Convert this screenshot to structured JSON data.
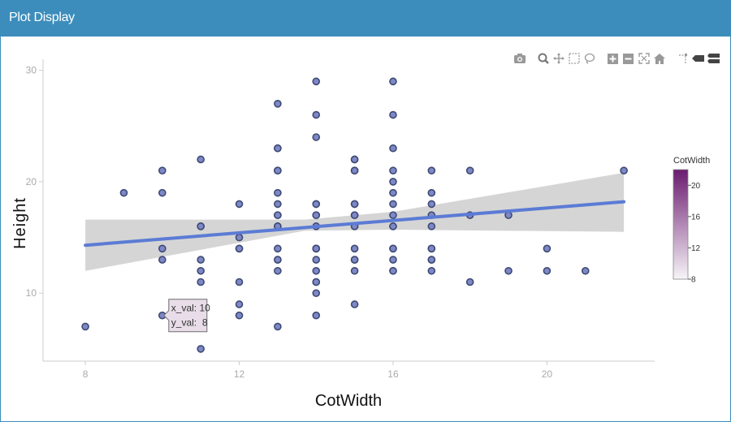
{
  "panel": {
    "title": "Plot Display"
  },
  "modebar": {
    "icons": [
      "camera-icon",
      "zoom-icon",
      "pan-icon",
      "box-select-icon",
      "lasso-select-icon",
      "zoom-in-icon",
      "zoom-out-icon",
      "autoscale-icon",
      "reset-axes-icon",
      "spike-lines-icon",
      "hover-closest-icon",
      "hover-compare-icon"
    ],
    "icon_color": "#999999"
  },
  "chart_data": {
    "type": "scatter",
    "title": "",
    "xlabel": "CotWidth",
    "ylabel": "Height",
    "xlim": [
      6.9,
      22.8
    ],
    "ylim": [
      3.9,
      30.7
    ],
    "xticks": [
      8,
      12,
      16,
      20
    ],
    "yticks": [
      10,
      20,
      30
    ],
    "grid": false,
    "points": [
      [
        8,
        7
      ],
      [
        9,
        19
      ],
      [
        10,
        21
      ],
      [
        10,
        19
      ],
      [
        10,
        14
      ],
      [
        10,
        13
      ],
      [
        10,
        8
      ],
      [
        11,
        22
      ],
      [
        11,
        16
      ],
      [
        11,
        16
      ],
      [
        11,
        13
      ],
      [
        11,
        12
      ],
      [
        11,
        11
      ],
      [
        11,
        5
      ],
      [
        12,
        18
      ],
      [
        12,
        15
      ],
      [
        12,
        14
      ],
      [
        12,
        14
      ],
      [
        12,
        11
      ],
      [
        12,
        9
      ],
      [
        12,
        8
      ],
      [
        13,
        27
      ],
      [
        13,
        23
      ],
      [
        13,
        23
      ],
      [
        13,
        21
      ],
      [
        13,
        21
      ],
      [
        13,
        19
      ],
      [
        13,
        18
      ],
      [
        13,
        17
      ],
      [
        13,
        17
      ],
      [
        13,
        16
      ],
      [
        13,
        16
      ],
      [
        13,
        14
      ],
      [
        13,
        13
      ],
      [
        13,
        13
      ],
      [
        13,
        12
      ],
      [
        13,
        7
      ],
      [
        14,
        29
      ],
      [
        14,
        26
      ],
      [
        14,
        24
      ],
      [
        14,
        18
      ],
      [
        14,
        18
      ],
      [
        14,
        17
      ],
      [
        14,
        17
      ],
      [
        14,
        16
      ],
      [
        14,
        14
      ],
      [
        14,
        14
      ],
      [
        14,
        14
      ],
      [
        14,
        13
      ],
      [
        14,
        12
      ],
      [
        14,
        11
      ],
      [
        14,
        11
      ],
      [
        14,
        10
      ],
      [
        14,
        8
      ],
      [
        15,
        22
      ],
      [
        15,
        22
      ],
      [
        15,
        21
      ],
      [
        15,
        21
      ],
      [
        15,
        18
      ],
      [
        15,
        18
      ],
      [
        15,
        17
      ],
      [
        15,
        17
      ],
      [
        15,
        16
      ],
      [
        15,
        16
      ],
      [
        15,
        14
      ],
      [
        15,
        13
      ],
      [
        15,
        13
      ],
      [
        15,
        12
      ],
      [
        15,
        9
      ],
      [
        16,
        29
      ],
      [
        16,
        26
      ],
      [
        16,
        23
      ],
      [
        16,
        21
      ],
      [
        16,
        20
      ],
      [
        16,
        19
      ],
      [
        16,
        18
      ],
      [
        16,
        17
      ],
      [
        16,
        16
      ],
      [
        16,
        16
      ],
      [
        16,
        14
      ],
      [
        16,
        14
      ],
      [
        16,
        13
      ],
      [
        16,
        12
      ],
      [
        16,
        12
      ],
      [
        17,
        21
      ],
      [
        17,
        19
      ],
      [
        17,
        18
      ],
      [
        17,
        17
      ],
      [
        17,
        16
      ],
      [
        17,
        14
      ],
      [
        17,
        14
      ],
      [
        17,
        13
      ],
      [
        17,
        13
      ],
      [
        17,
        12
      ],
      [
        18,
        21
      ],
      [
        18,
        17
      ],
      [
        18,
        11
      ],
      [
        19,
        17
      ],
      [
        19,
        12
      ],
      [
        20,
        14
      ],
      [
        20,
        12
      ],
      [
        21,
        12
      ],
      [
        22,
        21
      ]
    ],
    "trend": {
      "x": [
        8,
        22
      ],
      "y": [
        14.3,
        18.2
      ]
    },
    "band": {
      "x": [
        8,
        13.7,
        16,
        22
      ],
      "upper": [
        16.6,
        16.6,
        17.3,
        20.8
      ],
      "lower": [
        12.0,
        15.6,
        15.7,
        15.5
      ]
    },
    "colors": {
      "trend_line": "#5b7bd5",
      "band_fill": "#d0d0d0",
      "marker_fill": "#7e88c8",
      "marker_stroke": "#3d4a72",
      "axis_line": "#cccccc"
    },
    "legend": {
      "title": "CotWidth",
      "position": "right",
      "ticks": [
        20,
        16,
        12,
        8
      ],
      "range": [
        8,
        22
      ],
      "gradient_top": "#6a1b6f",
      "gradient_bottom": "#f7f4f8"
    },
    "tooltip": {
      "point": [
        10,
        8
      ],
      "line1": "x_val: 10",
      "line2": "y_val:  8",
      "fill": "#e8dde8",
      "border": "#6d6d6d"
    }
  }
}
